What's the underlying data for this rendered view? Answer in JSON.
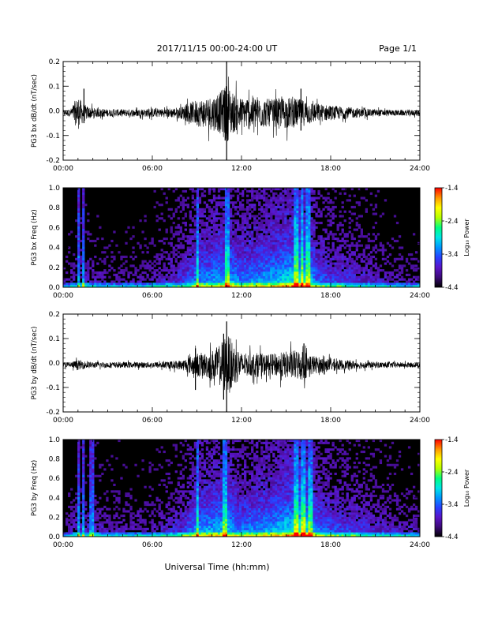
{
  "header": {
    "title": "2017/11/15  00:00-24:00 UT",
    "page_label": "Page 1/1"
  },
  "colors": {
    "trace": "#000000",
    "background": "#ffffff",
    "spectrogram_floor": "#000000"
  },
  "colormap": [
    "#000000",
    "#3c0a78",
    "#5a14c8",
    "#2840ff",
    "#0096ff",
    "#00e6e6",
    "#00ff80",
    "#b4ff00",
    "#ffff00",
    "#ff9600",
    "#ff0000"
  ],
  "chart_data": [
    {
      "id": "bx-timeseries",
      "type": "line",
      "ylabel": "PG3 bx dB/dt (nT/sec)",
      "ylim": [
        -0.2,
        0.2
      ],
      "yticks": [
        "0.2",
        "0.1",
        "0.0",
        "-0.1",
        "-0.2"
      ],
      "ytick_values": [
        0.2,
        0.1,
        0.0,
        -0.1,
        -0.2
      ],
      "xlim": [
        0,
        24
      ],
      "xticks": [
        "00:00",
        "06:00",
        "12:00",
        "18:00",
        "24:00"
      ],
      "envelope": {
        "hours": [
          0,
          0.5,
          0.8,
          1.0,
          1.2,
          1.5,
          2.0,
          3.0,
          4.0,
          5.0,
          6.0,
          7.0,
          8.0,
          8.5,
          9.0,
          9.5,
          10.0,
          10.5,
          11.0,
          11.5,
          12.0,
          12.5,
          13.0,
          13.5,
          14.0,
          14.5,
          15.0,
          15.5,
          16.0,
          16.5,
          17.0,
          17.5,
          18.0,
          19.0,
          20.0,
          21.0,
          22.0,
          23.0,
          24.0
        ],
        "amplitude": [
          0.012,
          0.015,
          0.05,
          0.07,
          0.05,
          0.03,
          0.02,
          0.015,
          0.015,
          0.015,
          0.018,
          0.018,
          0.025,
          0.04,
          0.055,
          0.06,
          0.07,
          0.08,
          0.12,
          0.08,
          0.06,
          0.07,
          0.07,
          0.06,
          0.055,
          0.06,
          0.065,
          0.06,
          0.055,
          0.05,
          0.04,
          0.035,
          0.03,
          0.025,
          0.018,
          0.015,
          0.012,
          0.012,
          0.012
        ]
      },
      "spikes": [
        {
          "hour": 1.4,
          "max": 0.09,
          "min": -0.05
        },
        {
          "hour": 11.0,
          "max": 0.2,
          "min": -0.2
        },
        {
          "hour": 10.9,
          "max": 0.08,
          "min": -0.12
        },
        {
          "hour": 16.0,
          "max": 0.09,
          "min": -0.08
        }
      ]
    },
    {
      "id": "bx-spectrogram",
      "type": "heatmap",
      "ylabel": "PG3 bx Freq (Hz)",
      "ylim": [
        0,
        1.0
      ],
      "yticks": [
        "1.0",
        "0.8",
        "0.6",
        "0.4",
        "0.2",
        "0.0"
      ],
      "ytick_values": [
        1.0,
        0.8,
        0.6,
        0.4,
        0.2,
        0.0
      ],
      "xlim": [
        0,
        24
      ],
      "xticks": [
        "00:00",
        "06:00",
        "12:00",
        "18:00",
        "24:00"
      ],
      "colorbar": {
        "label": "Log₁₀ Power",
        "range": [
          -4.4,
          -1.4
        ],
        "ticks": [
          "-1.4",
          "-2.4",
          "-3.4",
          "-4.4"
        ],
        "tick_values": [
          -1.4,
          -2.4,
          -3.4,
          -4.4
        ]
      },
      "activity": {
        "hours": [
          0,
          1,
          2,
          4,
          6,
          8,
          9,
          10,
          11,
          12,
          13,
          14,
          15,
          16,
          16.5,
          17,
          18,
          20,
          22,
          24
        ],
        "level": [
          0.15,
          0.3,
          0.25,
          0.2,
          0.25,
          0.4,
          0.6,
          0.65,
          0.75,
          0.6,
          0.65,
          0.7,
          0.8,
          0.9,
          0.85,
          0.55,
          0.45,
          0.35,
          0.25,
          0.2
        ]
      },
      "bright_columns": [
        1.0,
        1.35,
        9.0,
        11.0,
        15.7,
        16.1,
        16.5
      ]
    },
    {
      "id": "by-timeseries",
      "type": "line",
      "ylabel": "PG3 by dB/dt (nT/sec)",
      "ylim": [
        -0.2,
        0.2
      ],
      "yticks": [
        "0.2",
        "0.1",
        "0.0",
        "-0.1",
        "-0.2"
      ],
      "ytick_values": [
        0.2,
        0.1,
        0.0,
        -0.1,
        -0.2
      ],
      "xlim": [
        0,
        24
      ],
      "xticks": [
        "00:00",
        "06:00",
        "12:00",
        "18:00",
        "24:00"
      ],
      "envelope": {
        "hours": [
          0,
          0.5,
          1.0,
          1.5,
          2.0,
          3.0,
          4.0,
          5.0,
          6.0,
          7.0,
          8.0,
          8.5,
          9.0,
          9.5,
          10.0,
          10.5,
          11.0,
          11.5,
          12.0,
          12.5,
          13.0,
          13.5,
          14.0,
          14.5,
          15.0,
          15.5,
          16.0,
          16.5,
          17.0,
          17.5,
          18.0,
          19.0,
          20.0,
          21.0,
          22.0,
          23.0,
          24.0
        ],
        "amplitude": [
          0.01,
          0.012,
          0.02,
          0.015,
          0.012,
          0.012,
          0.012,
          0.012,
          0.012,
          0.015,
          0.02,
          0.035,
          0.05,
          0.05,
          0.06,
          0.08,
          0.13,
          0.09,
          0.05,
          0.045,
          0.05,
          0.045,
          0.045,
          0.05,
          0.055,
          0.06,
          0.065,
          0.05,
          0.035,
          0.03,
          0.025,
          0.02,
          0.015,
          0.012,
          0.012,
          0.01,
          0.01
        ]
      },
      "spikes": [
        {
          "hour": 8.9,
          "max": 0.06,
          "min": -0.11
        },
        {
          "hour": 11.0,
          "max": 0.17,
          "min": -0.2
        },
        {
          "hour": 10.8,
          "max": 0.12,
          "min": -0.15
        },
        {
          "hour": 16.2,
          "max": 0.08,
          "min": -0.05
        }
      ]
    },
    {
      "id": "by-spectrogram",
      "type": "heatmap",
      "ylabel": "PG3 by Freq (Hz)",
      "ylim": [
        0,
        1.0
      ],
      "yticks": [
        "1.0",
        "0.8",
        "0.6",
        "0.4",
        "0.2",
        "0.0"
      ],
      "ytick_values": [
        1.0,
        0.8,
        0.6,
        0.4,
        0.2,
        0.0
      ],
      "xlim": [
        0,
        24
      ],
      "xticks": [
        "00:00",
        "06:00",
        "12:00",
        "18:00",
        "24:00"
      ],
      "colorbar": {
        "label": "Log₁₀ Power",
        "range": [
          -4.4,
          -1.4
        ],
        "ticks": [
          "-1.4",
          "-2.4",
          "-3.4",
          "-4.4"
        ],
        "tick_values": [
          -1.4,
          -2.4,
          -3.4,
          -4.4
        ]
      },
      "activity": {
        "hours": [
          0,
          1,
          2,
          4,
          6,
          8,
          9,
          10,
          11,
          12,
          13,
          14,
          15,
          16,
          16.5,
          17,
          18,
          20,
          22,
          24
        ],
        "level": [
          0.15,
          0.3,
          0.3,
          0.25,
          0.25,
          0.4,
          0.65,
          0.7,
          0.75,
          0.6,
          0.65,
          0.7,
          0.8,
          0.9,
          0.85,
          0.6,
          0.5,
          0.4,
          0.3,
          0.25
        ]
      },
      "bright_columns": [
        1.0,
        1.4,
        1.9,
        9.0,
        10.9,
        15.7,
        16.2,
        16.6
      ]
    }
  ],
  "xlabel": "Universal Time (hh:mm)"
}
